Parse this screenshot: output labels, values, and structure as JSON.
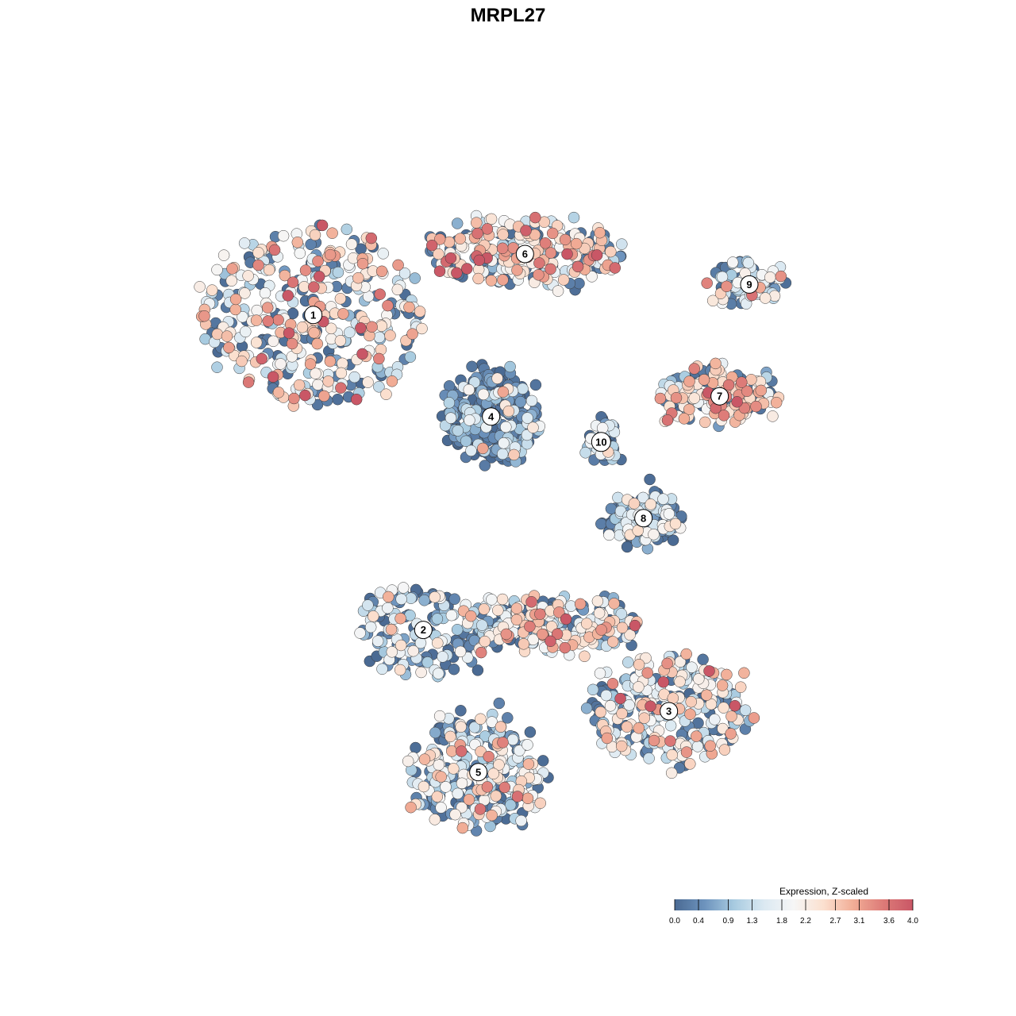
{
  "chart_data": {
    "type": "scatter",
    "title": "MRPL27",
    "xlabel": "",
    "ylabel": "",
    "grid": false,
    "legend": {
      "title": "Expression, Z-scaled",
      "placement": "bottom-right",
      "min": 0.0,
      "max": 4.0,
      "ticks": [
        "0.0",
        "0.4",
        "0.9",
        "1.3",
        "1.8",
        "2.2",
        "2.7",
        "3.1",
        "3.6",
        "4.0"
      ],
      "palette": [
        "#4a6a93",
        "#6d93bd",
        "#a8cbe0",
        "#dbe9f2",
        "#f6f6f6",
        "#fbe0cf",
        "#f1ad96",
        "#dd7b78",
        "#c95766"
      ]
    },
    "clusters": [
      {
        "label": "1",
        "x": -4.6,
        "y": 4.3,
        "spread": [
          2.6,
          1.7
        ],
        "mean_expr": 2.1,
        "n": 380
      },
      {
        "label": "2",
        "x": -2.0,
        "y": -1.9,
        "spread": [
          1.5,
          0.9
        ],
        "mean_expr": 1.0,
        "n": 150
      },
      {
        "label": "3",
        "x": 3.8,
        "y": -3.5,
        "spread": [
          2.0,
          1.1
        ],
        "mean_expr": 1.9,
        "n": 260
      },
      {
        "label": "4",
        "x": -0.4,
        "y": 2.3,
        "spread": [
          1.1,
          0.9
        ],
        "mean_expr": 0.55,
        "n": 260
      },
      {
        "label": "5",
        "x": -0.7,
        "y": -4.7,
        "spread": [
          1.6,
          1.1
        ],
        "mean_expr": 1.6,
        "n": 290
      },
      {
        "label": "6",
        "x": 0.4,
        "y": 5.5,
        "spread": [
          2.4,
          0.6
        ],
        "mean_expr": 2.2,
        "n": 260
      },
      {
        "label": "7",
        "x": 5.0,
        "y": 2.7,
        "spread": [
          1.4,
          0.5
        ],
        "mean_expr": 2.3,
        "n": 160
      },
      {
        "label": "8",
        "x": 3.2,
        "y": 0.3,
        "spread": [
          0.8,
          0.45
        ],
        "mean_expr": 0.75,
        "n": 170
      },
      {
        "label": "9",
        "x": 5.7,
        "y": 4.9,
        "spread": [
          0.9,
          0.35
        ],
        "mean_expr": 1.7,
        "n": 90
      },
      {
        "label": "10",
        "x": 2.2,
        "y": 1.8,
        "spread": [
          0.3,
          0.35
        ],
        "mean_expr": 1.0,
        "n": 40
      }
    ],
    "bridge": {
      "label": "",
      "x": 1.0,
      "y": -1.8,
      "spread": [
        2.1,
        0.5
      ],
      "mean_expr": 1.9,
      "n": 240
    },
    "xlim": [
      -9,
      9
    ],
    "ylim": [
      -7,
      8
    ]
  }
}
